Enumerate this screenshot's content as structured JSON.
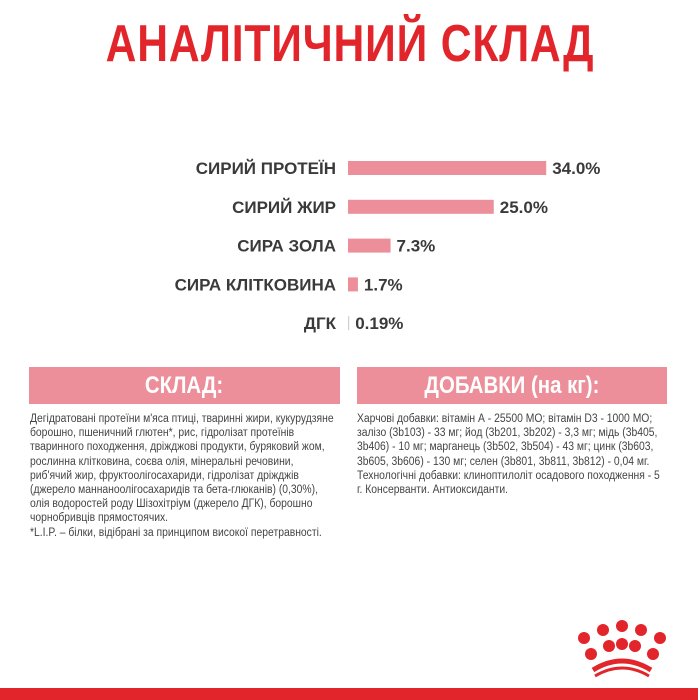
{
  "title": "АНАЛІТИЧНИЙ СКЛАД",
  "colors": {
    "brand_red": "#e2252b",
    "bar_pink": "#ec8f9a",
    "text": "#3a3a3a"
  },
  "chart_data": {
    "type": "bar",
    "orientation": "horizontal",
    "categories": [
      "СИРИЙ ПРОТЕЇН",
      "СИРИЙ ЖИР",
      "СИРА ЗОЛА",
      "СИРА КЛІТКОВИНА",
      "ДГК"
    ],
    "values": [
      34.0,
      25.0,
      7.3,
      1.7,
      0.19
    ],
    "data_labels": [
      "34.0%",
      "25.0%",
      "7.3%",
      "1.7%",
      "0.19%"
    ],
    "unit": "%",
    "grid": false
  },
  "composition": {
    "header": "СКЛАД:",
    "text": "Дегідратовані протеїни м'яса птиці, тваринні жири, кукурудзяне борошно, пшеничний глютен*, рис, гідролізат протеїнів тваринного походження, дріжджові продукти, буряковий жом, рослинна клітковина, соєва олія, мінеральні речовини, риб'ячий жир, фруктоолігосахариди, гідролізат дріжджів (джерело маннаноолігосахаридів та бета-глюканів) (0,30%), олія водоростей роду Шізохітріум (джерело ДГК), борошно чорнобривців прямостоячих.",
    "footnote": "*L.I.P. – білки, відібрані за принципом високої перетравності."
  },
  "additives": {
    "header": "ДОБАВКИ (на кг):",
    "text": "Харчові добавки: вітамін А - 25500 МО; вітамін D3 - 1000 МО; залізо (3b103) - 33 мг; йод (3b201, 3b202) - 3,3 мг; мідь (3b405, 3b406) - 10 мг; марганець (3b502, 3b504) - 43 мг; цинк (3b603, 3b605, 3b606) - 130 мг; селен (3b801, 3b811, 3b812) - 0,04 мг. Технологічні добавки: клиноптилоліт осадового походження - 5 г. Консерванти. Антиоксиданти."
  },
  "logo": {
    "icon": "crown-logo-icon"
  }
}
